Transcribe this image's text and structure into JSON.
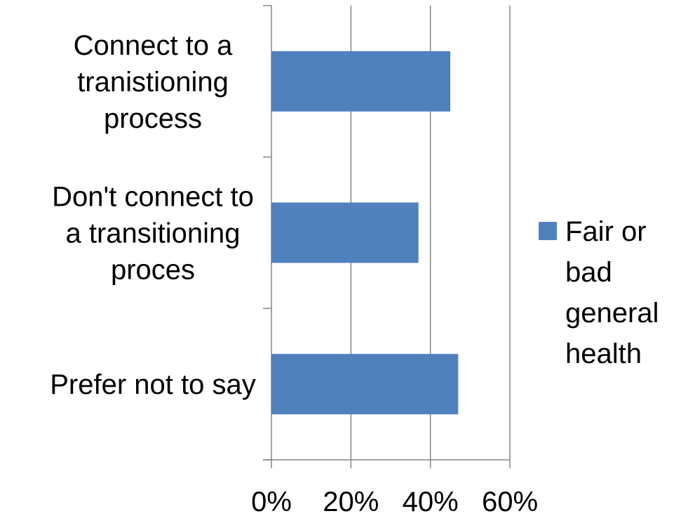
{
  "chart_data": {
    "type": "bar",
    "orientation": "horizontal",
    "categories": [
      [
        "Connect to a",
        "tranistioning",
        "process"
      ],
      [
        "Don't connect to",
        "a transitioning",
        "proces"
      ],
      [
        "Prefer not to say"
      ]
    ],
    "series": [
      {
        "name": "Fair or bad general health",
        "legend_lines": [
          "Fair or",
          "bad",
          "general",
          "health"
        ],
        "values": [
          0.45,
          0.37,
          0.47
        ],
        "color": "#4F81BD"
      }
    ],
    "x_ticks": [
      "0%",
      "20%",
      "40%",
      "60%"
    ],
    "x_tick_values": [
      0,
      0.2,
      0.4,
      0.6
    ],
    "xlim": [
      0,
      0.6
    ],
    "grid": "vertical",
    "legend_position": "right",
    "title": "",
    "xlabel": "",
    "ylabel": "",
    "colors": {
      "gridline": "#868686",
      "axis": "#868686"
    }
  }
}
